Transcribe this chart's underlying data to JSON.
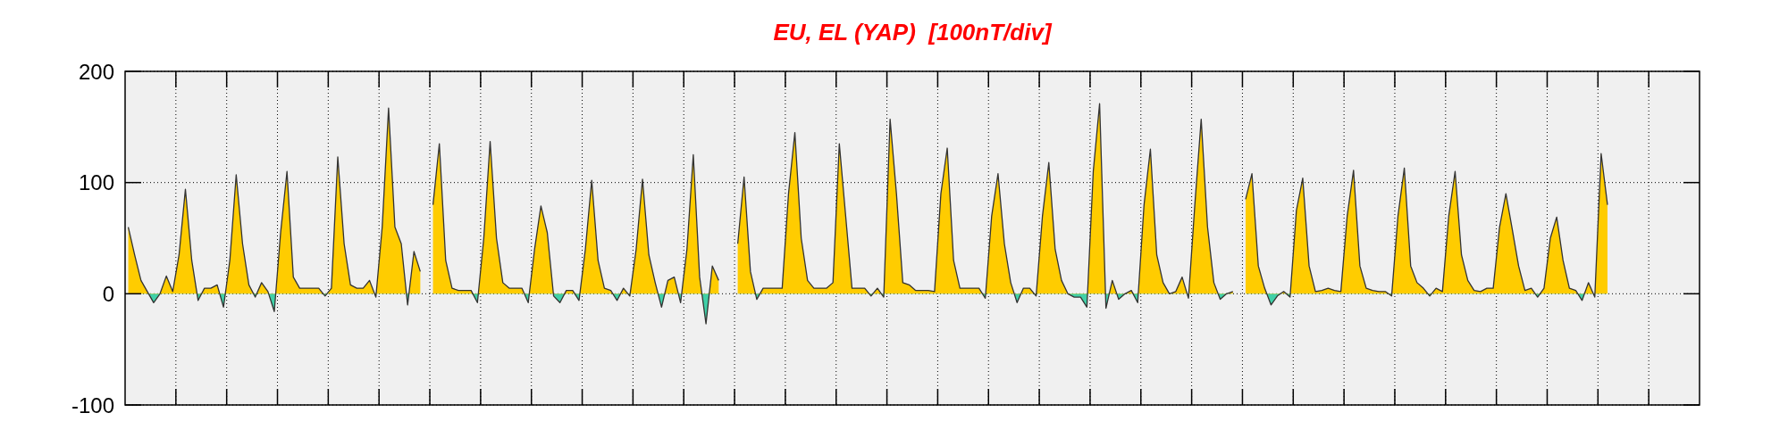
{
  "chart_data": {
    "type": "area",
    "title": "EU, EL (YAP)  [100nT/div]",
    "categories": [
      null,
      null,
      null,
      null,
      null,
      null,
      null,
      null,
      null,
      null,
      null,
      null,
      null,
      null,
      null,
      null,
      null,
      null,
      null,
      null,
      null,
      null,
      null,
      null,
      null,
      null,
      null,
      null,
      null,
      null,
      null,
      null,
      null,
      null,
      null,
      null,
      null,
      null,
      null,
      null,
      null,
      null,
      null,
      null,
      null,
      null,
      null,
      null,
      null,
      null,
      null,
      null,
      null,
      null,
      null,
      null,
      null,
      null,
      null,
      null,
      null,
      null,
      null,
      null,
      null,
      null,
      null,
      null,
      null,
      null,
      null,
      null,
      null,
      null,
      null,
      null,
      null,
      null,
      null,
      null,
      null,
      null,
      null,
      null,
      null,
      null,
      null,
      null,
      null,
      null,
      null,
      null,
      null,
      null,
      null,
      null,
      null,
      null,
      null,
      null,
      null,
      null,
      null,
      null,
      null,
      null,
      null,
      null,
      null,
      null,
      null,
      null,
      null,
      null,
      null,
      null,
      null,
      null,
      null,
      null,
      null,
      null,
      null,
      null,
      null,
      null,
      null,
      null,
      null,
      null,
      null,
      null,
      null,
      null,
      null,
      null,
      null,
      null,
      null,
      null,
      null,
      null,
      null,
      null,
      null,
      null,
      null,
      null,
      null,
      null,
      null,
      null,
      null,
      null,
      null,
      null,
      null,
      null,
      null,
      null,
      null,
      null,
      null,
      null,
      null,
      null,
      null,
      null,
      null,
      null,
      null,
      null,
      null,
      null,
      null,
      null,
      null,
      null,
      null,
      null,
      null,
      null,
      null,
      null,
      null,
      null,
      null,
      null,
      null,
      null,
      null,
      null,
      null,
      null,
      null,
      null,
      null,
      null,
      null,
      null,
      null,
      null,
      null,
      null,
      null,
      null,
      null,
      null,
      null,
      null,
      null,
      null,
      null,
      null,
      null,
      null,
      null,
      null,
      null,
      null,
      null,
      null,
      null,
      null,
      null,
      null,
      null,
      null,
      null,
      null,
      null,
      null,
      null,
      null,
      null,
      null,
      null,
      null,
      null,
      null,
      null,
      null,
      null,
      null,
      null,
      null,
      null,
      null
    ],
    "ylim": [
      -100,
      200
    ],
    "yticks": [
      -100,
      0,
      100,
      200
    ],
    "grid": true,
    "tick_labels": "y",
    "series": [
      {
        "color": "#ffcc00",
        "values": [
          60,
          35,
          12,
          2,
          -8,
          0,
          16,
          2,
          35,
          94,
          30,
          -6,
          5,
          5,
          8,
          -12,
          30,
          107,
          45,
          8,
          -3,
          10,
          2,
          -16,
          55,
          110,
          15,
          5,
          5,
          5,
          5,
          -2,
          5,
          123,
          45,
          8,
          5,
          5,
          12,
          -3,
          60,
          167,
          60,
          45,
          -10,
          38,
          20,
          null,
          80,
          135,
          30,
          5,
          3,
          3,
          3,
          -8,
          50,
          137,
          50,
          10,
          5,
          5,
          5,
          -8,
          40,
          79,
          55,
          -2,
          -8,
          3,
          3,
          -6,
          40,
          102,
          30,
          5,
          3,
          -6,
          5,
          -2,
          40,
          103,
          35,
          10,
          -12,
          12,
          15,
          -8,
          40,
          125,
          15,
          -27,
          25,
          12,
          null,
          null,
          45,
          105,
          20,
          -5,
          5,
          5,
          5,
          5,
          90,
          145,
          50,
          12,
          5,
          5,
          5,
          10,
          135,
          70,
          5,
          5,
          5,
          -2,
          5,
          -3,
          157,
          90,
          10,
          8,
          3,
          3,
          3,
          2,
          90,
          131,
          30,
          5,
          5,
          5,
          5,
          -4,
          70,
          108,
          45,
          10,
          -8,
          5,
          5,
          -2,
          70,
          118,
          40,
          12,
          0,
          -3,
          -3,
          -12,
          110,
          171,
          -13,
          12,
          -5,
          0,
          3,
          -8,
          80,
          130,
          35,
          10,
          0,
          2,
          15,
          -4,
          80,
          157,
          60,
          10,
          -5,
          0,
          2,
          null,
          85,
          108,
          25,
          5,
          -10,
          -2,
          2,
          -3,
          75,
          104,
          25,
          2,
          3,
          5,
          3,
          2,
          70,
          111,
          25,
          5,
          3,
          2,
          2,
          -2,
          70,
          113,
          25,
          10,
          5,
          -2,
          5,
          2,
          70,
          110,
          35,
          12,
          3,
          2,
          5,
          5,
          60,
          90,
          58,
          25,
          3,
          5,
          -3,
          5,
          50,
          69,
          30,
          5,
          3,
          -6,
          10,
          -3,
          126,
          80,
          null,
          null,
          null,
          null,
          null,
          null,
          null,
          null,
          null,
          null,
          null,
          null,
          null,
          null
        ]
      }
    ]
  }
}
